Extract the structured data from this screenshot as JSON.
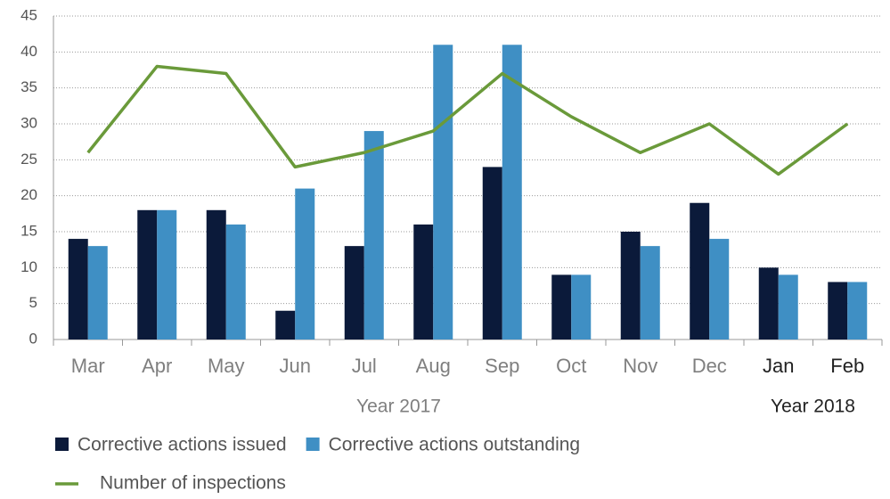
{
  "chart_data": {
    "type": "bar-line",
    "categories": [
      "Mar",
      "Apr",
      "May",
      "Jun",
      "Jul",
      "Aug",
      "Sep",
      "Oct",
      "Nov",
      "Dec",
      "Jan",
      "Feb"
    ],
    "groups": [
      {
        "name": "Year 2017",
        "span": 10,
        "color": "#7f7f7f"
      },
      {
        "name": "Year 2018",
        "span": 2,
        "color": "#222222"
      }
    ],
    "series": [
      {
        "name": "Corrective actions issued",
        "type": "bar",
        "color": "#0b1a3a",
        "values": [
          14,
          18,
          18,
          4,
          13,
          16,
          24,
          9,
          15,
          19,
          10,
          8
        ]
      },
      {
        "name": "Corrective actions outstanding",
        "type": "bar",
        "color": "#3f8fc4",
        "values": [
          13,
          18,
          16,
          21,
          29,
          41,
          41,
          9,
          13,
          14,
          9,
          8
        ]
      },
      {
        "name": "Number of inspections",
        "type": "line",
        "color": "#6a9a3a",
        "values": [
          26,
          38,
          37,
          24,
          26,
          29,
          37,
          31,
          26,
          30,
          23,
          30
        ]
      }
    ],
    "ylim": [
      0,
      45
    ],
    "yticks": [
      0,
      5,
      10,
      15,
      20,
      25,
      30,
      35,
      40,
      45
    ],
    "grid": true
  }
}
